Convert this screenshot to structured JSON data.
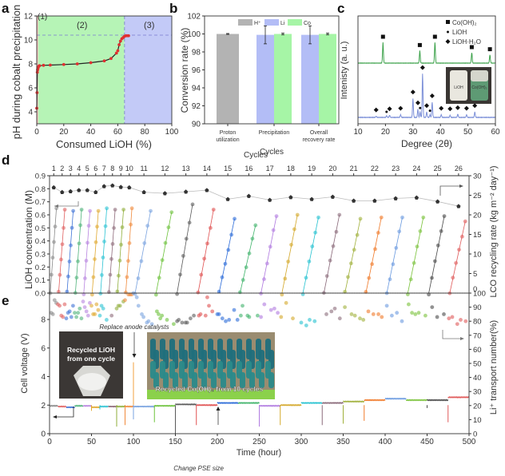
{
  "chart_data": [
    {
      "id": "a",
      "panel_label": "a",
      "type": "line",
      "title": "",
      "xlabel": "Consumed LiOH (%)",
      "ylabel": "pH during cobalt precipitation",
      "xlim": [
        0,
        100
      ],
      "ylim": [
        3,
        12
      ],
      "xticks": [
        "0",
        "20",
        "40",
        "60",
        "80",
        "100"
      ],
      "yticks": [
        "4",
        "6",
        "8",
        "10",
        "12"
      ],
      "regions": [
        {
          "label": "(1)",
          "x": [
            0,
            1
          ],
          "color": "#f7b9b9"
        },
        {
          "label": "(2)",
          "x": [
            1,
            65
          ],
          "color": "#b6f4b6"
        },
        {
          "label": "(3)",
          "x": [
            65,
            100
          ],
          "color": "#c3caf7"
        }
      ],
      "reference_line_y": 10.4,
      "series": [
        {
          "name": "pH",
          "color": "#e03030",
          "x": [
            0,
            0.2,
            0.4,
            0.6,
            0.8,
            1,
            1.5,
            2,
            5,
            10,
            20,
            30,
            40,
            50,
            55,
            59,
            60,
            61,
            62,
            63,
            64,
            65,
            66,
            67,
            68
          ],
          "y": [
            4.3,
            5.6,
            7.3,
            7.5,
            7.6,
            7.7,
            7.8,
            7.85,
            7.88,
            7.9,
            7.95,
            8.0,
            8.1,
            8.25,
            8.45,
            8.9,
            9.1,
            9.6,
            9.9,
            10.1,
            10.2,
            10.3,
            10.35,
            10.35,
            10.35
          ]
        }
      ]
    },
    {
      "id": "b",
      "panel_label": "b",
      "type": "bar",
      "xlabel": "Cycles",
      "ylabel": "Conversion rate (%)",
      "ylim": [
        90,
        102
      ],
      "yticks": [
        "90",
        "92",
        "94",
        "96",
        "98",
        "100",
        "102"
      ],
      "categories": [
        "Proton utilization",
        "Precipitation",
        "Overall recovery rate"
      ],
      "legend": [
        {
          "name": "H⁺",
          "color": "#b3b3b3"
        },
        {
          "name": "Li",
          "color": "#b3bdf6"
        },
        {
          "name": "Co",
          "color": "#a6f5a6"
        }
      ],
      "legend_position": "top",
      "series": [
        {
          "name": "H⁺",
          "values": [
            100.0,
            null,
            null
          ],
          "errors": [
            0.05,
            null,
            null
          ]
        },
        {
          "name": "Li",
          "values": [
            null,
            99.9,
            99.9
          ],
          "errors": [
            null,
            1.0,
            1.0
          ]
        },
        {
          "name": "Co",
          "values": [
            null,
            100.0,
            100.0
          ],
          "errors": [
            null,
            0.1,
            0.1
          ]
        }
      ]
    },
    {
      "id": "c",
      "panel_label": "c",
      "type": "line",
      "xlabel": "Degree (2θ)",
      "ylabel": "Intenisty (a. u.)",
      "xlim": [
        10,
        60
      ],
      "xticks": [
        "10",
        "20",
        "30",
        "40",
        "50",
        "60"
      ],
      "legend": [
        {
          "marker": "square",
          "name": "Co(OH)₂"
        },
        {
          "marker": "dot",
          "name": "LiOH"
        },
        {
          "marker": "diamond",
          "name": "LiOH·H₂O"
        }
      ],
      "legend_position": "top-right",
      "series": [
        {
          "name": "Co(OH)₂",
          "color": "#3fa34d",
          "peaks_2theta": [
            19.1,
            32.5,
            38.0,
            51.4,
            58.0
          ],
          "peak_heights": [
            0.5,
            0.3,
            0.5,
            0.25,
            0.2
          ]
        },
        {
          "name": "LiOH / LiOH·H₂O",
          "color": "#7b8fd8",
          "peaks_2theta": [
            16.6,
            20.4,
            21.5,
            25.5,
            30.0,
            31.8,
            32.6,
            33.5,
            35.0,
            36.2,
            37.0,
            40.3,
            43.5,
            46.3,
            49.5,
            52.5
          ],
          "peak_heights": [
            0.02,
            0.03,
            0.04,
            0.05,
            0.35,
            0.15,
            0.1,
            0.8,
            0.1,
            0.05,
            0.28,
            0.05,
            0.04,
            0.06,
            0.05,
            0.1
          ]
        }
      ],
      "markers": {
        "square": [
          19.1,
          32.5,
          38.0,
          51.4,
          58.0
        ],
        "dot": [
          20.4,
          32.6,
          36.2
        ],
        "diamond": [
          16.6,
          21.5,
          25.5,
          30.0,
          31.8,
          33.5,
          35.0,
          37.0,
          40.3,
          43.5,
          46.3,
          49.5,
          52.5
        ]
      },
      "inset": {
        "labels": [
          "LiOH",
          "Co(OH)₂"
        ]
      }
    },
    {
      "id": "d",
      "panel_label": "d",
      "type": "scatter",
      "top_axis_label": "Cycles",
      "ylabel": "LiOH concentration (M)",
      "y2label": "LCO recycling rate (kg m⁻² day⁻¹)",
      "ylim": [
        0,
        0.9
      ],
      "y2lim": [
        0,
        30
      ],
      "yticks": [
        "0.0",
        "0.1",
        "0.2",
        "0.3",
        "0.4",
        "0.5",
        "0.6",
        "0.7",
        "0.8",
        "0.9"
      ],
      "y2ticks": [
        "0",
        "5",
        "10",
        "15",
        "20",
        "25",
        "30"
      ],
      "cycles": [
        "1",
        "2",
        "3",
        "4",
        "5",
        "6",
        "7",
        "8",
        "9",
        "10",
        "11",
        "12",
        "13",
        "14",
        "15",
        "16",
        "17",
        "18",
        "19",
        "20",
        "21",
        "22",
        "23",
        "24",
        "25",
        "26"
      ],
      "cycle_time_hours": [
        0,
        10,
        20,
        30,
        40,
        50,
        60,
        70,
        80,
        90,
        100,
        125,
        150,
        175,
        200,
        225,
        250,
        275,
        300,
        325,
        350,
        375,
        400,
        425,
        450,
        475
      ],
      "cycle_end_hours": [
        10,
        20,
        30,
        40,
        50,
        60,
        70,
        80,
        90,
        100,
        125,
        150,
        175,
        200,
        225,
        250,
        275,
        300,
        325,
        350,
        375,
        400,
        425,
        450,
        475,
        500
      ],
      "cycle_colors": [
        "#8a8a8a",
        "#e06060",
        "#3d72d6",
        "#4fb37a",
        "#b884e0",
        "#e0a82e",
        "#2cc3d3",
        "#8e6a7a",
        "#8fae3a",
        "#f08a3c",
        "#7aa3e0",
        "#6cc23a",
        "#5a5a5a",
        "#e05050",
        "#2a6ad8",
        "#3fb36a",
        "#b07ae0",
        "#d4a82a",
        "#25c2d0",
        "#8a6a7a",
        "#a0b03a",
        "#f07a2a",
        "#6a9ae0",
        "#7ac23a",
        "#4a4a4a",
        "#e05a5a"
      ],
      "final_concentration_M": [
        0.65,
        0.64,
        0.63,
        0.64,
        0.63,
        0.63,
        0.65,
        0.64,
        0.64,
        0.65,
        0.63,
        0.62,
        0.68,
        0.64,
        0.57,
        0.52,
        0.59,
        0.6,
        0.58,
        0.6,
        0.57,
        0.58,
        0.58,
        0.58,
        0.59,
        0.55
      ],
      "recycling_rate": [
        27.0,
        25.8,
        26.0,
        26.3,
        26.3,
        25.8,
        27.3,
        27.5,
        27.1,
        27.0,
        25.8,
        25.5,
        25.9,
        26.3,
        24.0,
        24.8,
        23.8,
        24.5,
        24.0,
        24.6,
        23.6,
        23.6,
        24.2,
        24.4,
        23.4,
        22.2
      ]
    },
    {
      "id": "e",
      "panel_label": "e",
      "type": "line",
      "xlabel": "Time (hour)",
      "ylabel": "Cell voltage (V)",
      "y2label": "Li⁺ transport number(%)",
      "xlim": [
        0,
        500
      ],
      "ylim": [
        0,
        10
      ],
      "y2lim": [
        0,
        100
      ],
      "xticks": [
        "0",
        "50",
        "100",
        "150",
        "200",
        "250",
        "300",
        "350",
        "400",
        "450",
        "500"
      ],
      "yticks": [
        "0",
        "2",
        "4",
        "6",
        "8"
      ],
      "y2ticks": [
        "0",
        "10",
        "20",
        "30",
        "40",
        "50",
        "60",
        "70",
        "80",
        "90",
        "100"
      ],
      "voltage_segments": [
        {
          "t": [
            0,
            10
          ],
          "v": 1.95
        },
        {
          "t": [
            10,
            20
          ],
          "v": 1.9
        },
        {
          "t": [
            20,
            30
          ],
          "v": 1.85
        },
        {
          "t": [
            30,
            40
          ],
          "v": 1.95
        },
        {
          "t": [
            40,
            50
          ],
          "v": 1.95
        },
        {
          "t": [
            50,
            60
          ],
          "v": 1.85
        },
        {
          "t": [
            60,
            70
          ],
          "v": 1.9
        },
        {
          "t": [
            70,
            80
          ],
          "v": 1.9
        },
        {
          "t": [
            80,
            90
          ],
          "v": 1.9
        },
        {
          "t": [
            90,
            100
          ],
          "v": 1.9
        },
        {
          "t": [
            100,
            125
          ],
          "v": 1.9
        },
        {
          "t": [
            125,
            150
          ],
          "v": 1.95
        },
        {
          "t": [
            150,
            175
          ],
          "v": 2.05
        },
        {
          "t": [
            175,
            200
          ],
          "v": 2.0
        },
        {
          "t": [
            200,
            225
          ],
          "v": 2.15
        },
        {
          "t": [
            225,
            250
          ],
          "v": 2.15
        },
        {
          "t": [
            250,
            275
          ],
          "v": 1.95
        },
        {
          "t": [
            275,
            300
          ],
          "v": 2.0
        },
        {
          "t": [
            300,
            325
          ],
          "v": 2.15
        },
        {
          "t": [
            325,
            350
          ],
          "v": 2.15
        },
        {
          "t": [
            350,
            375
          ],
          "v": 2.25
        },
        {
          "t": [
            375,
            400
          ],
          "v": 2.35
        },
        {
          "t": [
            400,
            425
          ],
          "v": 2.45
        },
        {
          "t": [
            425,
            450
          ],
          "v": 2.35
        },
        {
          "t": [
            450,
            475
          ],
          "v": 2.35
        },
        {
          "t": [
            475,
            500
          ],
          "v": 2.55
        }
      ],
      "voltage_spikes": [
        {
          "t": 50,
          "v": 1.6
        },
        {
          "t": 60,
          "v": 1.7
        },
        {
          "t": 80,
          "v": 0.5
        },
        {
          "t": 90,
          "v": 0.6
        },
        {
          "t": 100,
          "v": 5.0
        },
        {
          "t": 100,
          "v": 1.0
        },
        {
          "t": 125,
          "v": 0.8
        },
        {
          "t": 150,
          "v": 0.0
        },
        {
          "t": 175,
          "v": 0.6
        },
        {
          "t": 250,
          "v": 0.5
        },
        {
          "t": 275,
          "v": 0.6
        },
        {
          "t": 325,
          "v": 0.6
        },
        {
          "t": 350,
          "v": 0.7
        },
        {
          "t": 375,
          "v": 0.9
        },
        {
          "t": 450,
          "v": 1.8
        },
        {
          "t": 475,
          "v": 0.8
        }
      ],
      "transport_number_pct": [
        [
          2,
          86
        ],
        [
          4,
          85
        ],
        [
          6,
          95
        ],
        [
          8,
          93
        ],
        [
          10,
          92
        ],
        [
          12,
          91
        ],
        [
          14,
          84
        ],
        [
          16,
          83
        ],
        [
          18,
          92
        ],
        [
          20,
          82
        ],
        [
          22,
          86
        ],
        [
          24,
          87
        ],
        [
          26,
          83
        ],
        [
          28,
          91
        ],
        [
          30,
          86
        ],
        [
          32,
          83
        ],
        [
          34,
          86
        ],
        [
          36,
          89
        ],
        [
          38,
          82
        ],
        [
          40,
          94
        ],
        [
          42,
          90
        ],
        [
          44,
          87
        ],
        [
          46,
          84
        ],
        [
          48,
          93
        ],
        [
          50,
          91
        ],
        [
          52,
          85
        ],
        [
          54,
          85
        ],
        [
          56,
          92
        ],
        [
          58,
          88
        ],
        [
          60,
          84
        ],
        [
          62,
          91
        ],
        [
          64,
          89
        ],
        [
          68,
          81
        ],
        [
          74,
          84
        ],
        [
          80,
          89
        ],
        [
          82,
          91
        ],
        [
          84,
          91
        ],
        [
          88,
          94
        ],
        [
          90,
          95
        ],
        [
          94,
          99
        ],
        [
          96,
          99
        ],
        [
          98,
          99
        ],
        [
          100,
          100
        ],
        [
          104,
          97
        ],
        [
          106,
          91
        ],
        [
          110,
          85
        ],
        [
          112,
          83
        ],
        [
          116,
          79
        ],
        [
          118,
          80
        ],
        [
          122,
          78
        ],
        [
          128,
          87
        ],
        [
          130,
          85
        ],
        [
          132,
          82
        ],
        [
          134,
          84
        ],
        [
          140,
          81
        ],
        [
          148,
          78
        ],
        [
          152,
          80
        ],
        [
          154,
          81
        ],
        [
          158,
          79
        ],
        [
          162,
          79
        ],
        [
          164,
          79
        ],
        [
          168,
          82
        ],
        [
          172,
          84
        ],
        [
          178,
          84
        ],
        [
          180,
          85
        ],
        [
          186,
          84
        ],
        [
          188,
          97
        ],
        [
          190,
          91
        ],
        [
          194,
          87
        ],
        [
          200,
          85
        ],
        [
          202,
          85
        ],
        [
          206,
          82
        ],
        [
          210,
          80
        ],
        [
          214,
          81
        ],
        [
          220,
          88
        ],
        [
          224,
          81
        ],
        [
          228,
          84
        ],
        [
          230,
          91
        ],
        [
          236,
          84
        ],
        [
          238,
          83
        ],
        [
          248,
          84
        ],
        [
          252,
          83
        ],
        [
          256,
          92
        ],
        [
          264,
          88
        ],
        [
          268,
          89
        ],
        [
          272,
          86
        ],
        [
          276,
          83
        ],
        [
          282,
          93
        ],
        [
          290,
          82
        ],
        [
          300,
          79
        ],
        [
          306,
          77
        ],
        [
          310,
          81
        ],
        [
          316,
          80
        ]
      ],
      "annotations": [
        "Replace anode catalysts",
        "Change PSE size",
        "Recycled LiOH from one cycle",
        "Recycled Co(OH)₂ from 10 cycles"
      ]
    }
  ],
  "labels": {
    "a": {
      "panel": "a",
      "xlabel": "Consumed LiOH (%)",
      "ylabel": "pH during cobalt precipitation",
      "r1": "(1)",
      "r2": "(2)",
      "r3": "(3)"
    },
    "b": {
      "panel": "b",
      "xlabel": "Cycles",
      "ylabel": "Conversion rate (%)",
      "cat1a": "Proton",
      "cat1b": "utilization",
      "cat2": "Precipitation",
      "cat3a": "Overall",
      "cat3b": "recovery rate",
      "leg_h": "H⁺",
      "leg_li": "Li",
      "leg_co": "Co"
    },
    "c": {
      "panel": "c",
      "xlabel": "Degree (2θ)",
      "ylabel": "Intenisty (a. u.)",
      "leg1": "Co(OH)₂",
      "leg2": "LiOH",
      "leg3": "LiOH·H₂O",
      "inset1": "LiOH",
      "inset2": "Co(OH)₂"
    },
    "d": {
      "panel": "d",
      "ylabel": "LiOH concentration (M)",
      "y2label": "LCO recycling rate (kg m⁻² day⁻¹)"
    },
    "e": {
      "panel": "e",
      "xlabel": "Time (hour)",
      "ylabel": "Cell voltage (V)",
      "y2label": "Li⁺ transport number(%)",
      "ann_replace": "Replace anode catalysts",
      "ann_pse": "Change PSE size",
      "photo1a": "Recycled LiOH",
      "photo1b": "from one cycle",
      "photo2": "Recycled Co(OH)₂ from 10 cycles"
    }
  }
}
